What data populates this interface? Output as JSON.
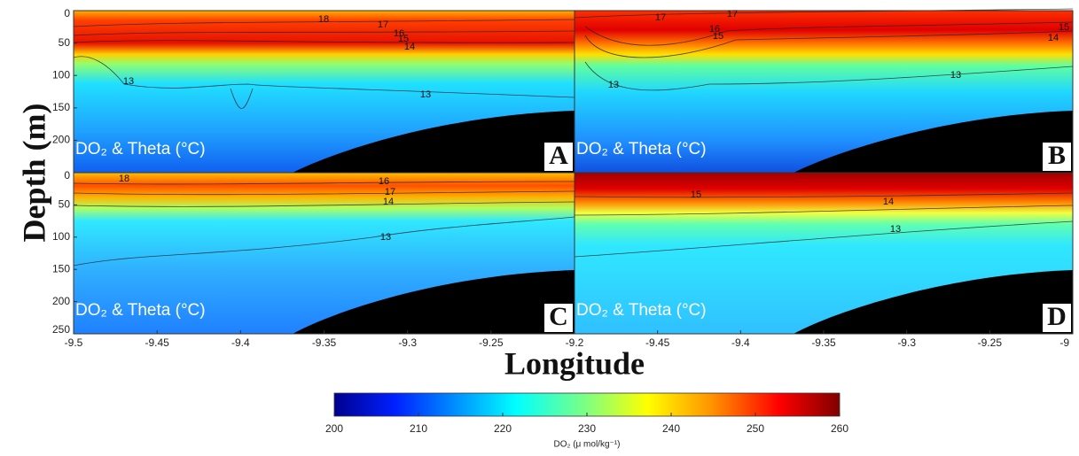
{
  "figure": {
    "y_label": "Depth (m)",
    "x_label": "Longitude",
    "colorbar": {
      "label": "DO₂ (μ mol/kg⁻¹)",
      "colormap": "jet",
      "lim": [
        200,
        260
      ],
      "ticks": [
        200,
        210,
        220,
        230,
        240,
        250,
        260
      ]
    }
  },
  "chart_data": [
    {
      "type": "contour",
      "panel_label": "A",
      "annotation": "DO₂ & Theta (°C)",
      "xlim": [
        -9.5,
        -9.2
      ],
      "ylim": [
        0,
        250
      ],
      "yticks": [
        0,
        50,
        100,
        150,
        200
      ],
      "contour_labels": [
        18,
        17,
        16,
        15,
        14,
        13,
        13
      ]
    },
    {
      "type": "contour",
      "panel_label": "B",
      "annotation": "DO₂ & Theta (°C)",
      "xlim": [
        -9.5,
        -9.2
      ],
      "ylim": [
        0,
        250
      ],
      "contour_labels": [
        17,
        17,
        16,
        15,
        14,
        15,
        13,
        13
      ]
    },
    {
      "type": "contour",
      "panel_label": "C",
      "annotation": "DO₂ & Theta (°C)",
      "xlim": [
        -9.5,
        -9.2
      ],
      "ylim": [
        0,
        250
      ],
      "xticks": [
        -9.5,
        -9.45,
        -9.4,
        -9.35,
        -9.3,
        -9.25,
        -9.2
      ],
      "yticks": [
        0,
        50,
        100,
        150,
        200,
        250
      ],
      "contour_labels": [
        18,
        16,
        17,
        14,
        13
      ]
    },
    {
      "type": "contour",
      "panel_label": "D",
      "annotation": "DO₂ & Theta (°C)",
      "xlim": [
        -9.5,
        -9.2
      ],
      "ylim": [
        0,
        250
      ],
      "xticks": [
        -9.45,
        -9.4,
        -9.35,
        -9.3,
        -9.25,
        {
          "value": -9.2,
          "label": "-9"
        }
      ],
      "contour_labels": [
        15,
        14,
        13
      ]
    }
  ]
}
